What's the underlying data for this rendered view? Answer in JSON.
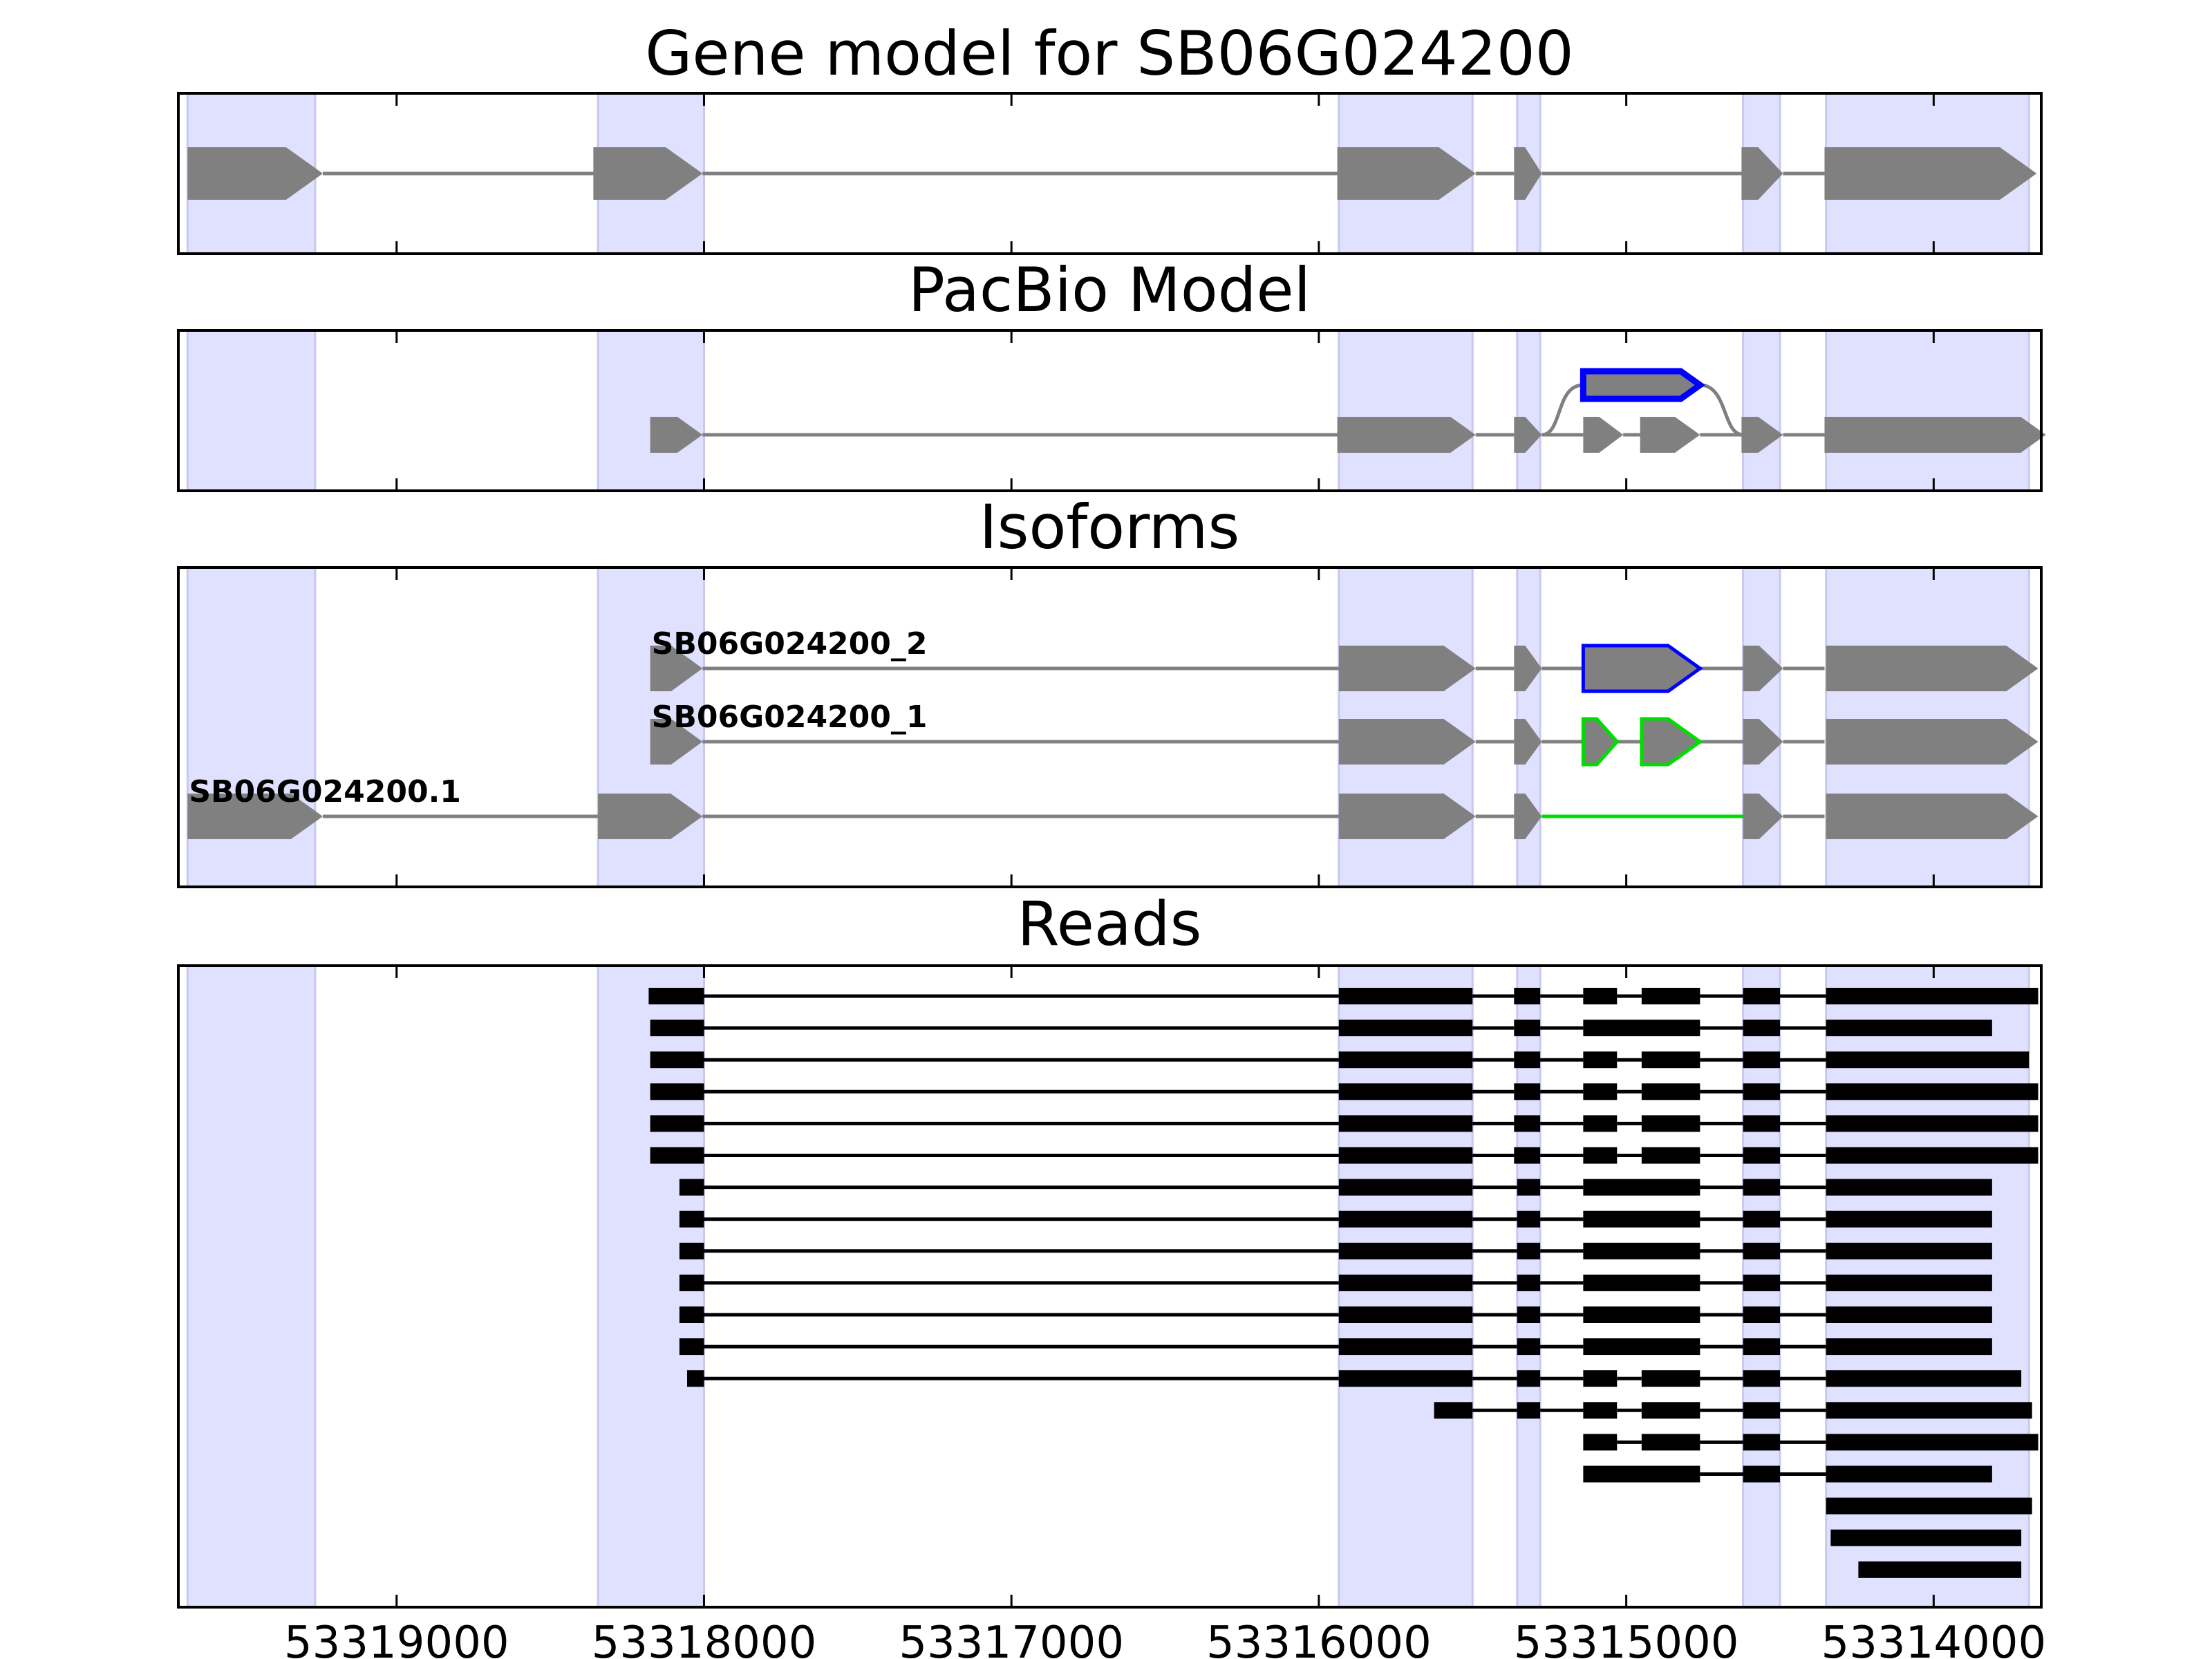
{
  "figure": {
    "background": "#ffffff",
    "exon_band_color": "#e0e0ff",
    "exon_band_edge_color": "#c8c8f0",
    "feature_color": "#808080",
    "intron_color": "#808080",
    "read_color": "#000000",
    "alt_exon_color": "#0000ff",
    "skip_color": "#00dd00"
  },
  "chart_data": {
    "type": "gene-structure",
    "xlim": [
      53319710,
      53313650
    ],
    "x_axis_reversed": true,
    "xticks": [
      53319000,
      53318000,
      53317000,
      53316000,
      53315000,
      53314000
    ],
    "xtick_labels": [
      "53319000",
      "53318000",
      "53317000",
      "53316000",
      "53315000",
      "53314000"
    ],
    "exon_bands": [
      [
        53319680,
        53319265
      ],
      [
        53318345,
        53318000
      ],
      [
        53315935,
        53315500
      ],
      [
        53315355,
        53315280
      ],
      [
        53314620,
        53314500
      ],
      [
        53314350,
        53313690
      ]
    ],
    "panels": [
      {
        "title": "Gene model for SB06G024200",
        "tracks": [
          {
            "introns": [
              [
                53319240,
                53318345
              ],
              [
                53318005,
                53315935
              ],
              [
                53315490,
                53315365
              ],
              [
                53315275,
                53314620
              ],
              [
                53314490,
                53314355
              ]
            ],
            "exons": [
              {
                "start": 53319680,
                "end": 53319240,
                "style": "arrow"
              },
              {
                "start": 53318360,
                "end": 53318005,
                "style": "arrow"
              },
              {
                "start": 53315940,
                "end": 53315490,
                "style": "arrow"
              },
              {
                "start": 53315365,
                "end": 53315275,
                "style": "arrow"
              },
              {
                "start": 53314625,
                "end": 53314490,
                "style": "arrow"
              },
              {
                "start": 53314355,
                "end": 53313665,
                "style": "arrow"
              }
            ]
          }
        ]
      },
      {
        "title": "PacBio Model",
        "tracks": [
          {
            "introns": [
              [
                53318005,
                53315935
              ],
              [
                53315490,
                53315365
              ],
              [
                53315275,
                53315140
              ],
              [
                53315010,
                53314955
              ],
              [
                53314760,
                53314620
              ],
              [
                53314490,
                53314355
              ]
            ],
            "exons": [
              {
                "start": 53318175,
                "end": 53318005,
                "style": "arrow"
              },
              {
                "start": 53315940,
                "end": 53315490,
                "style": "arrow"
              },
              {
                "start": 53315365,
                "end": 53315275,
                "style": "arrow"
              },
              {
                "start": 53315140,
                "end": 53315010,
                "style": "arrow"
              },
              {
                "start": 53314955,
                "end": 53314760,
                "style": "arrow"
              },
              {
                "start": 53314625,
                "end": 53314490,
                "style": "arrow"
              },
              {
                "start": 53314355,
                "end": 53313635,
                "style": "arrow"
              }
            ],
            "alternative": {
              "start": 53315140,
              "end": 53314760,
              "from": 53315275,
              "to": 53314620
            }
          }
        ]
      },
      {
        "title": "Isoforms",
        "tracks": [
          {
            "label": "SB06G024200_2",
            "introns": [
              [
                53318005,
                53315935
              ],
              [
                53315490,
                53315365
              ],
              [
                53315275,
                53315140
              ],
              [
                53314760,
                53314620
              ],
              [
                53314490,
                53314355
              ]
            ],
            "exons": [
              {
                "start": 53318175,
                "end": 53318005,
                "style": "arrow"
              },
              {
                "start": 53315935,
                "end": 53315490,
                "style": "arrow"
              },
              {
                "start": 53315365,
                "end": 53315275,
                "style": "arrow"
              },
              {
                "start": 53315140,
                "end": 53314760,
                "style": "arrow-outline"
              },
              {
                "start": 53314620,
                "end": 53314490,
                "style": "arrow"
              },
              {
                "start": 53314350,
                "end": 53313660,
                "style": "arrow"
              }
            ]
          },
          {
            "label": "SB06G024200_1",
            "introns": [
              [
                53318005,
                53315935
              ],
              [
                53315490,
                53315365
              ],
              [
                53315275,
                53315140
              ],
              [
                53315030,
                53314950
              ],
              [
                53314760,
                53314620
              ],
              [
                53314490,
                53314355
              ]
            ],
            "exons": [
              {
                "start": 53318175,
                "end": 53318005,
                "style": "arrow"
              },
              {
                "start": 53315935,
                "end": 53315490,
                "style": "arrow"
              },
              {
                "start": 53315365,
                "end": 53315275,
                "style": "arrow"
              },
              {
                "start": 53315140,
                "end": 53315030,
                "style": "arrow-skip"
              },
              {
                "start": 53314950,
                "end": 53314760,
                "style": "arrow-skip"
              },
              {
                "start": 53314620,
                "end": 53314490,
                "style": "arrow"
              },
              {
                "start": 53314350,
                "end": 53313660,
                "style": "arrow"
              }
            ]
          },
          {
            "label": "SB06G024200.1",
            "introns": [
              [
                53319240,
                53318345
              ],
              [
                53318005,
                53315935
              ],
              [
                53315490,
                53315365
              ],
              [
                53314490,
                53314355
              ]
            ],
            "skip_introns": [
              [
                53315275,
                53314620
              ]
            ],
            "exons": [
              {
                "start": 53319680,
                "end": 53319240,
                "style": "arrow"
              },
              {
                "start": 53318345,
                "end": 53318005,
                "style": "arrow"
              },
              {
                "start": 53315935,
                "end": 53315490,
                "style": "arrow"
              },
              {
                "start": 53315365,
                "end": 53315275,
                "style": "arrow"
              },
              {
                "start": 53314620,
                "end": 53314490,
                "style": "arrow"
              },
              {
                "start": 53314350,
                "end": 53313660,
                "style": "arrow"
              }
            ]
          }
        ]
      },
      {
        "title": "Reads",
        "reads": [
          [
            [
              53318180,
              53318000
            ],
            [
              53315935,
              53315500
            ],
            [
              53315365,
              53315280
            ],
            [
              53315140,
              53315030
            ],
            [
              53314950,
              53314760
            ],
            [
              53314620,
              53314500
            ],
            [
              53314350,
              53313660
            ]
          ],
          [
            [
              53318175,
              53318000
            ],
            [
              53315935,
              53315500
            ],
            [
              53315365,
              53315280
            ],
            [
              53315140,
              53314760
            ],
            [
              53314620,
              53314500
            ],
            [
              53314350,
              53313810
            ]
          ],
          [
            [
              53318175,
              53318000
            ],
            [
              53315935,
              53315500
            ],
            [
              53315365,
              53315280
            ],
            [
              53315140,
              53315030
            ],
            [
              53314950,
              53314760
            ],
            [
              53314620,
              53314500
            ],
            [
              53314350,
              53313690
            ]
          ],
          [
            [
              53318175,
              53318000
            ],
            [
              53315935,
              53315500
            ],
            [
              53315365,
              53315280
            ],
            [
              53315140,
              53315030
            ],
            [
              53314950,
              53314760
            ],
            [
              53314620,
              53314500
            ],
            [
              53314350,
              53313660
            ]
          ],
          [
            [
              53318175,
              53318000
            ],
            [
              53315935,
              53315500
            ],
            [
              53315365,
              53315280
            ],
            [
              53315140,
              53315030
            ],
            [
              53314950,
              53314760
            ],
            [
              53314620,
              53314500
            ],
            [
              53314350,
              53313660
            ]
          ],
          [
            [
              53318175,
              53318000
            ],
            [
              53315935,
              53315500
            ],
            [
              53315365,
              53315280
            ],
            [
              53315140,
              53315030
            ],
            [
              53314950,
              53314760
            ],
            [
              53314620,
              53314500
            ],
            [
              53314350,
              53313660
            ]
          ],
          [
            [
              53318080,
              53318000
            ],
            [
              53315935,
              53315500
            ],
            [
              53315355,
              53315280
            ],
            [
              53315140,
              53314760
            ],
            [
              53314620,
              53314500
            ],
            [
              53314350,
              53313810
            ]
          ],
          [
            [
              53318080,
              53318000
            ],
            [
              53315935,
              53315500
            ],
            [
              53315355,
              53315280
            ],
            [
              53315140,
              53314760
            ],
            [
              53314620,
              53314500
            ],
            [
              53314350,
              53313810
            ]
          ],
          [
            [
              53318080,
              53318000
            ],
            [
              53315935,
              53315500
            ],
            [
              53315355,
              53315280
            ],
            [
              53315140,
              53314760
            ],
            [
              53314620,
              53314500
            ],
            [
              53314350,
              53313810
            ]
          ],
          [
            [
              53318080,
              53318000
            ],
            [
              53315935,
              53315500
            ],
            [
              53315355,
              53315280
            ],
            [
              53315140,
              53314760
            ],
            [
              53314620,
              53314500
            ],
            [
              53314350,
              53313810
            ]
          ],
          [
            [
              53318080,
              53318000
            ],
            [
              53315935,
              53315500
            ],
            [
              53315355,
              53315280
            ],
            [
              53315140,
              53314760
            ],
            [
              53314620,
              53314500
            ],
            [
              53314350,
              53313810
            ]
          ],
          [
            [
              53318080,
              53318000
            ],
            [
              53315935,
              53315500
            ],
            [
              53315355,
              53315280
            ],
            [
              53315140,
              53314760
            ],
            [
              53314620,
              53314500
            ],
            [
              53314350,
              53313810
            ]
          ],
          [
            [
              53318055,
              53318000
            ],
            [
              53315935,
              53315500
            ],
            [
              53315355,
              53315280
            ],
            [
              53315140,
              53315030
            ],
            [
              53314950,
              53314760
            ],
            [
              53314620,
              53314500
            ],
            [
              53314350,
              53313715
            ]
          ],
          [
            [
              53315625,
              53315500
            ],
            [
              53315355,
              53315280
            ],
            [
              53315140,
              53315030
            ],
            [
              53314950,
              53314760
            ],
            [
              53314620,
              53314500
            ],
            [
              53314350,
              53313680
            ]
          ],
          [
            [
              53315140,
              53315030
            ],
            [
              53314950,
              53314760
            ],
            [
              53314620,
              53314500
            ],
            [
              53314350,
              53313660
            ]
          ],
          [
            [
              53315140,
              53314760
            ],
            [
              53314620,
              53314500
            ],
            [
              53314350,
              53313810
            ]
          ],
          [
            [
              53314350,
              53313680
            ]
          ],
          [
            [
              53314335,
              53313715
            ]
          ],
          [
            [
              53314245,
              53313715
            ]
          ]
        ]
      }
    ]
  }
}
